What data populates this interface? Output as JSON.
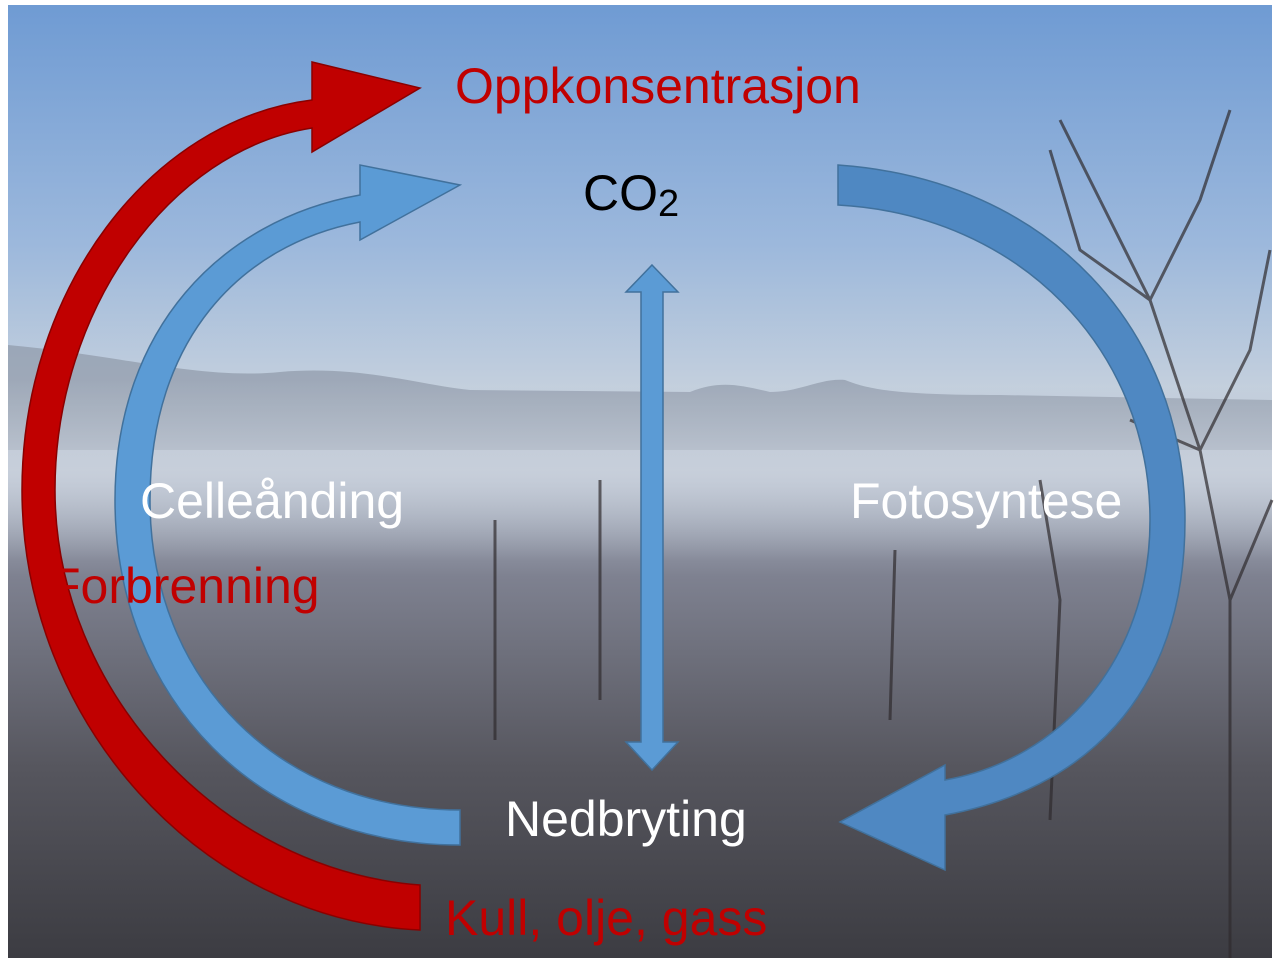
{
  "title": "Oppkonsentrasjon",
  "center": {
    "text": "CO",
    "subscript": "2"
  },
  "left": {
    "process": "Celleånding",
    "fossil": "Forbrenning"
  },
  "right": {
    "process": "Fotosyntese"
  },
  "bottom": {
    "process": "Nedbryting",
    "fossil": "Kull, olje, gass"
  }
}
